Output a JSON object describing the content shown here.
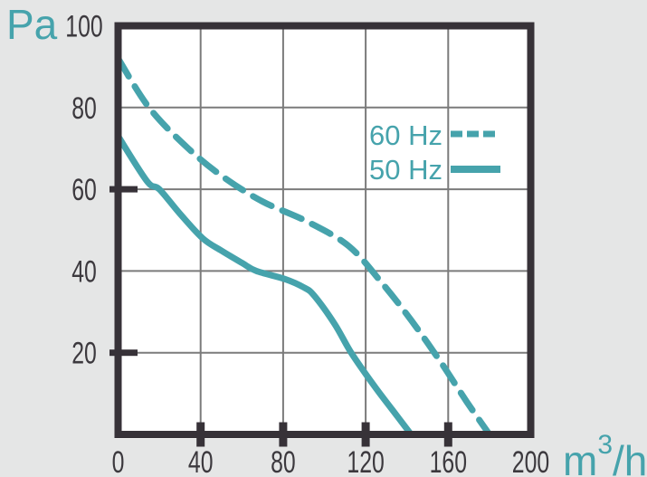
{
  "chart": {
    "y_axis_unit": "Pa",
    "x_axis_unit": {
      "base": "m",
      "sup": "3",
      "rest": "/h"
    },
    "colors": {
      "accent": "#46a3ac",
      "frame": "#373238",
      "grid": "#7b7b7b",
      "label": "#3c393e",
      "background": "#e5e6e6",
      "plot_background": "#ffffff"
    }
  },
  "chart_data": {
    "type": "line",
    "title": "",
    "xlabel": "m³/h",
    "ylabel": "Pa",
    "xlim": [
      0,
      200
    ],
    "ylim": [
      0,
      100
    ],
    "x_ticks": [
      0,
      40,
      80,
      120,
      160,
      200
    ],
    "y_ticks": [
      100,
      80,
      60,
      40,
      20
    ],
    "x_emphasized_ticks": [
      40,
      80,
      120,
      160
    ],
    "y_emphasized_ticks": [
      60,
      20
    ],
    "grid": true,
    "legend_position": "upper-right-inside",
    "series": [
      {
        "name": "60 Hz",
        "style": "dashed",
        "points": [
          [
            0,
            92
          ],
          [
            15,
            80
          ],
          [
            34,
            70
          ],
          [
            51,
            63
          ],
          [
            70,
            57
          ],
          [
            92,
            52
          ],
          [
            112,
            46
          ],
          [
            128,
            37
          ],
          [
            142,
            28
          ],
          [
            156,
            18
          ],
          [
            169,
            8
          ],
          [
            180,
            0
          ]
        ]
      },
      {
        "name": "50 Hz",
        "style": "solid",
        "points": [
          [
            0,
            73
          ],
          [
            14,
            62
          ],
          [
            20,
            60
          ],
          [
            30,
            54
          ],
          [
            41,
            48
          ],
          [
            50,
            45
          ],
          [
            60,
            42
          ],
          [
            67,
            40
          ],
          [
            81,
            38
          ],
          [
            90,
            36
          ],
          [
            95,
            34
          ],
          [
            105,
            27
          ],
          [
            113,
            20
          ],
          [
            124,
            12
          ],
          [
            133,
            6
          ],
          [
            142,
            0
          ]
        ]
      }
    ]
  }
}
